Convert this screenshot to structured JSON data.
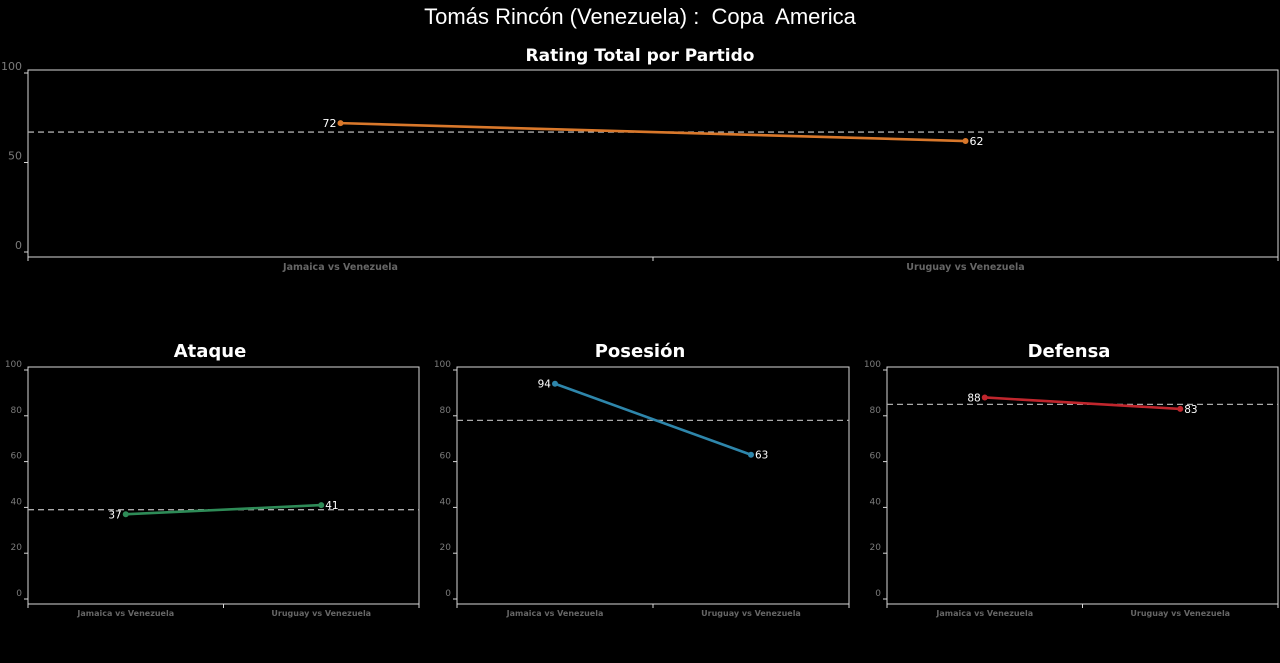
{
  "title": "Tomás Rincón (Venezuela) :  Copa  America",
  "chart_data": [
    {
      "type": "line",
      "title": "Rating Total por Partido",
      "categories": [
        "Jamaica vs Venezuela",
        "Uruguay vs Venezuela"
      ],
      "values": [
        72,
        62
      ],
      "ylim": [
        0,
        100
      ],
      "yticks": [
        0,
        50,
        100
      ],
      "average": 67,
      "color": "#d9782b"
    },
    {
      "type": "line",
      "title": "Ataque",
      "categories": [
        "Jamaica vs Venezuela",
        "Uruguay vs Venezuela"
      ],
      "values": [
        37,
        41
      ],
      "ylim": [
        0,
        100
      ],
      "yticks": [
        0,
        20,
        40,
        60,
        80,
        100
      ],
      "average": 39,
      "color": "#2e8b57"
    },
    {
      "type": "line",
      "title": "Posesión",
      "categories": [
        "Jamaica vs Venezuela",
        "Uruguay vs Venezuela"
      ],
      "values": [
        94,
        63
      ],
      "ylim": [
        0,
        100
      ],
      "yticks": [
        0,
        20,
        40,
        60,
        80,
        100
      ],
      "average": 78,
      "color": "#2e86ab"
    },
    {
      "type": "line",
      "title": "Defensa",
      "categories": [
        "Jamaica vs Venezuela",
        "Uruguay vs Venezuela"
      ],
      "values": [
        88,
        83
      ],
      "ylim": [
        0,
        100
      ],
      "yticks": [
        0,
        20,
        40,
        60,
        80,
        100
      ],
      "average": 85,
      "color": "#c0262d"
    }
  ]
}
